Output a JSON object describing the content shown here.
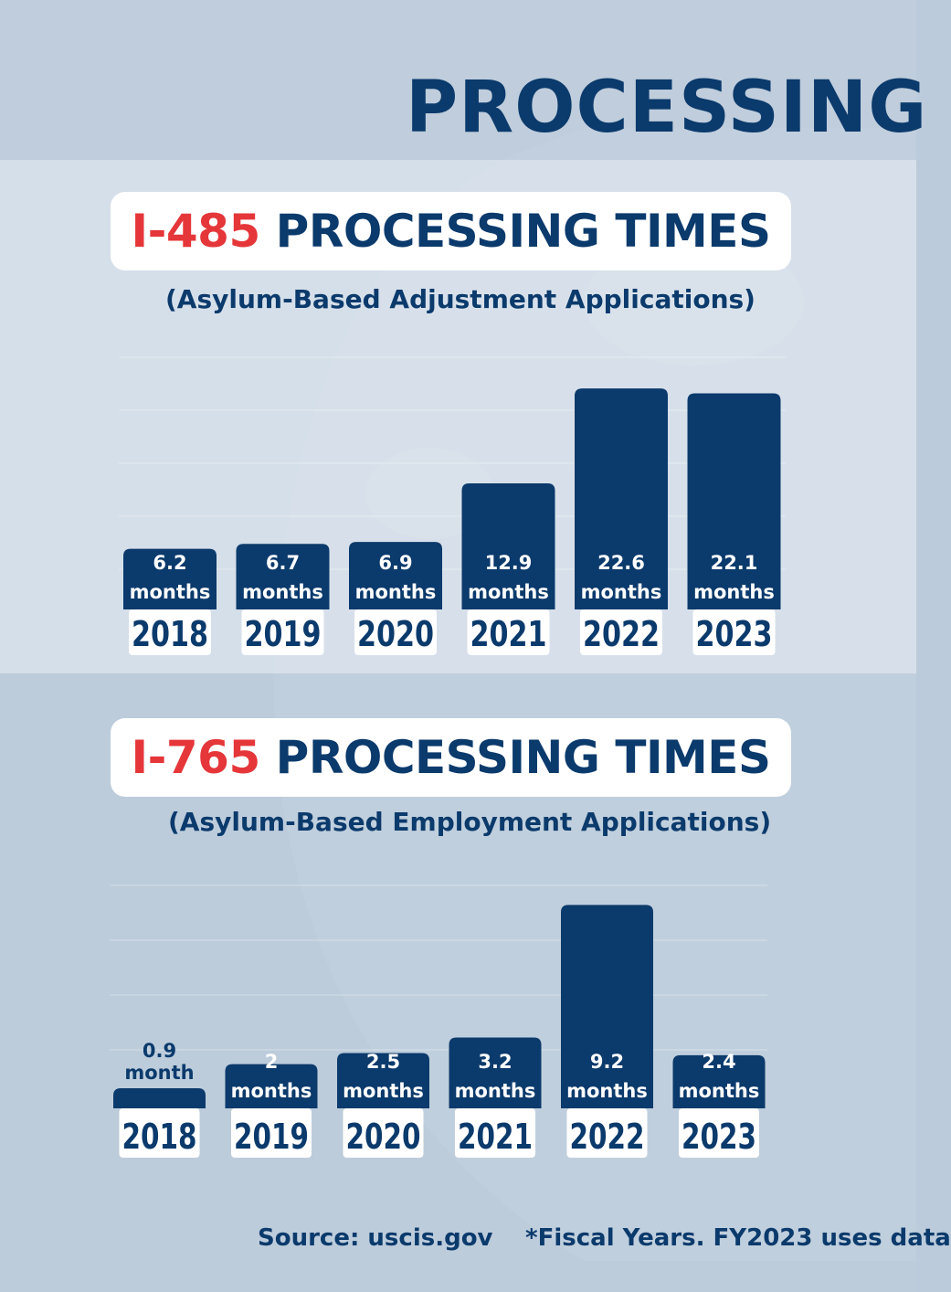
{
  "header": {
    "title": "PROCESSING"
  },
  "colors": {
    "navy": "#0b3a6c",
    "red": "#e53639",
    "white": "#ffffff"
  },
  "charts": [
    {
      "code": "I-485",
      "title_rest": "PROCESSING TIMES",
      "subtitle": "(Asylum-Based Adjustment Applications)"
    },
    {
      "code": "I-765",
      "title_rest": "PROCESSING TIMES",
      "subtitle": "(Asylum-Based Employment Applications)"
    }
  ],
  "chart_data": [
    {
      "type": "bar",
      "title": "I-485 PROCESSING TIMES",
      "subtitle": "(Asylum-Based Adjustment Applications)",
      "categories": [
        "2018",
        "2019",
        "2020",
        "2021",
        "2022",
        "2023"
      ],
      "values": [
        6.2,
        6.7,
        6.9,
        12.9,
        22.6,
        22.1
      ],
      "value_labels": [
        "6.2",
        "6.7",
        "6.9",
        "12.9",
        "22.6",
        "22.1"
      ],
      "unit_labels": [
        "months",
        "months",
        "months",
        "months",
        "months",
        "months"
      ],
      "grid": true,
      "legend": "none"
    },
    {
      "type": "bar",
      "title": "I-765 PROCESSING TIMES",
      "subtitle": "(Asylum-Based Employment Applications)",
      "categories": [
        "2018",
        "2019",
        "2020",
        "2021",
        "2022",
        "2023"
      ],
      "values": [
        0.9,
        2,
        2.5,
        3.2,
        9.2,
        2.4
      ],
      "value_labels": [
        "0.9",
        "2",
        "2.5",
        "3.2",
        "9.2",
        "2.4"
      ],
      "unit_labels": [
        "month",
        "months",
        "months",
        "months",
        "months",
        "months"
      ],
      "grid": true,
      "legend": "none"
    }
  ],
  "footer": {
    "source": "Source: uscis.gov",
    "note": "*Fiscal Years. FY2023 uses data"
  }
}
